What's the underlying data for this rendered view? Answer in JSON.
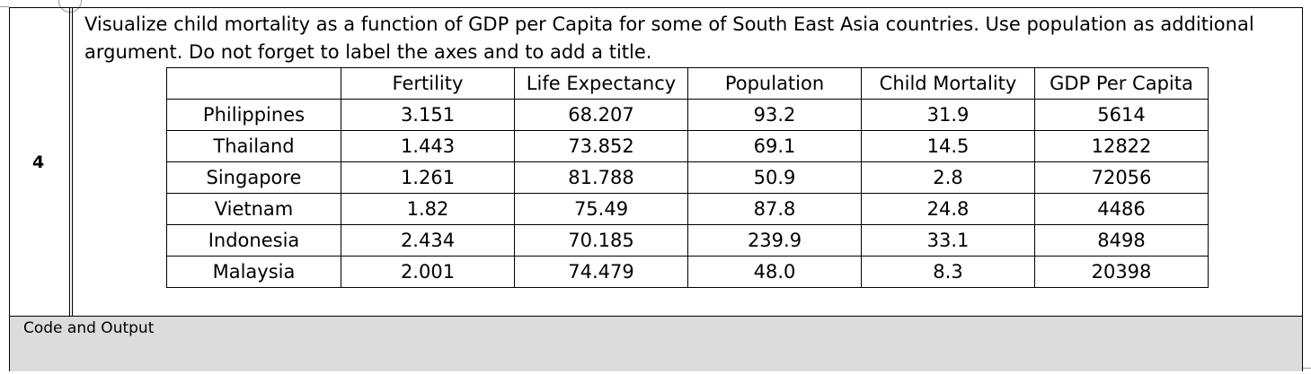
{
  "row_number": "4",
  "question": "Visualize child mortality as a function of GDP per Capita for some of South East Asia countries. Use population as additional argument. Do not forget to label the axes and to add a title.",
  "table": {
    "headers": [
      "",
      "Fertility",
      "Life Expectancy",
      "Population",
      "Child Mortality",
      "GDP Per Capita"
    ],
    "rows": [
      [
        "Philippines",
        "3.151",
        "68.207",
        "93.2",
        "31.9",
        "5614"
      ],
      [
        "Thailand",
        "1.443",
        "73.852",
        "69.1",
        "14.5",
        "12822"
      ],
      [
        "Singapore",
        "1.261",
        "81.788",
        "50.9",
        "2.8",
        "72056"
      ],
      [
        "Vietnam",
        "1.82",
        "75.49",
        "87.8",
        "24.8",
        "4486"
      ],
      [
        "Indonesia",
        "2.434",
        "70.185",
        "239.9",
        "33.1",
        "8498"
      ],
      [
        "Malaysia",
        "2.001",
        "74.479",
        "48.0",
        "8.3",
        "20398"
      ]
    ]
  },
  "code_section_label": "Code and Output"
}
